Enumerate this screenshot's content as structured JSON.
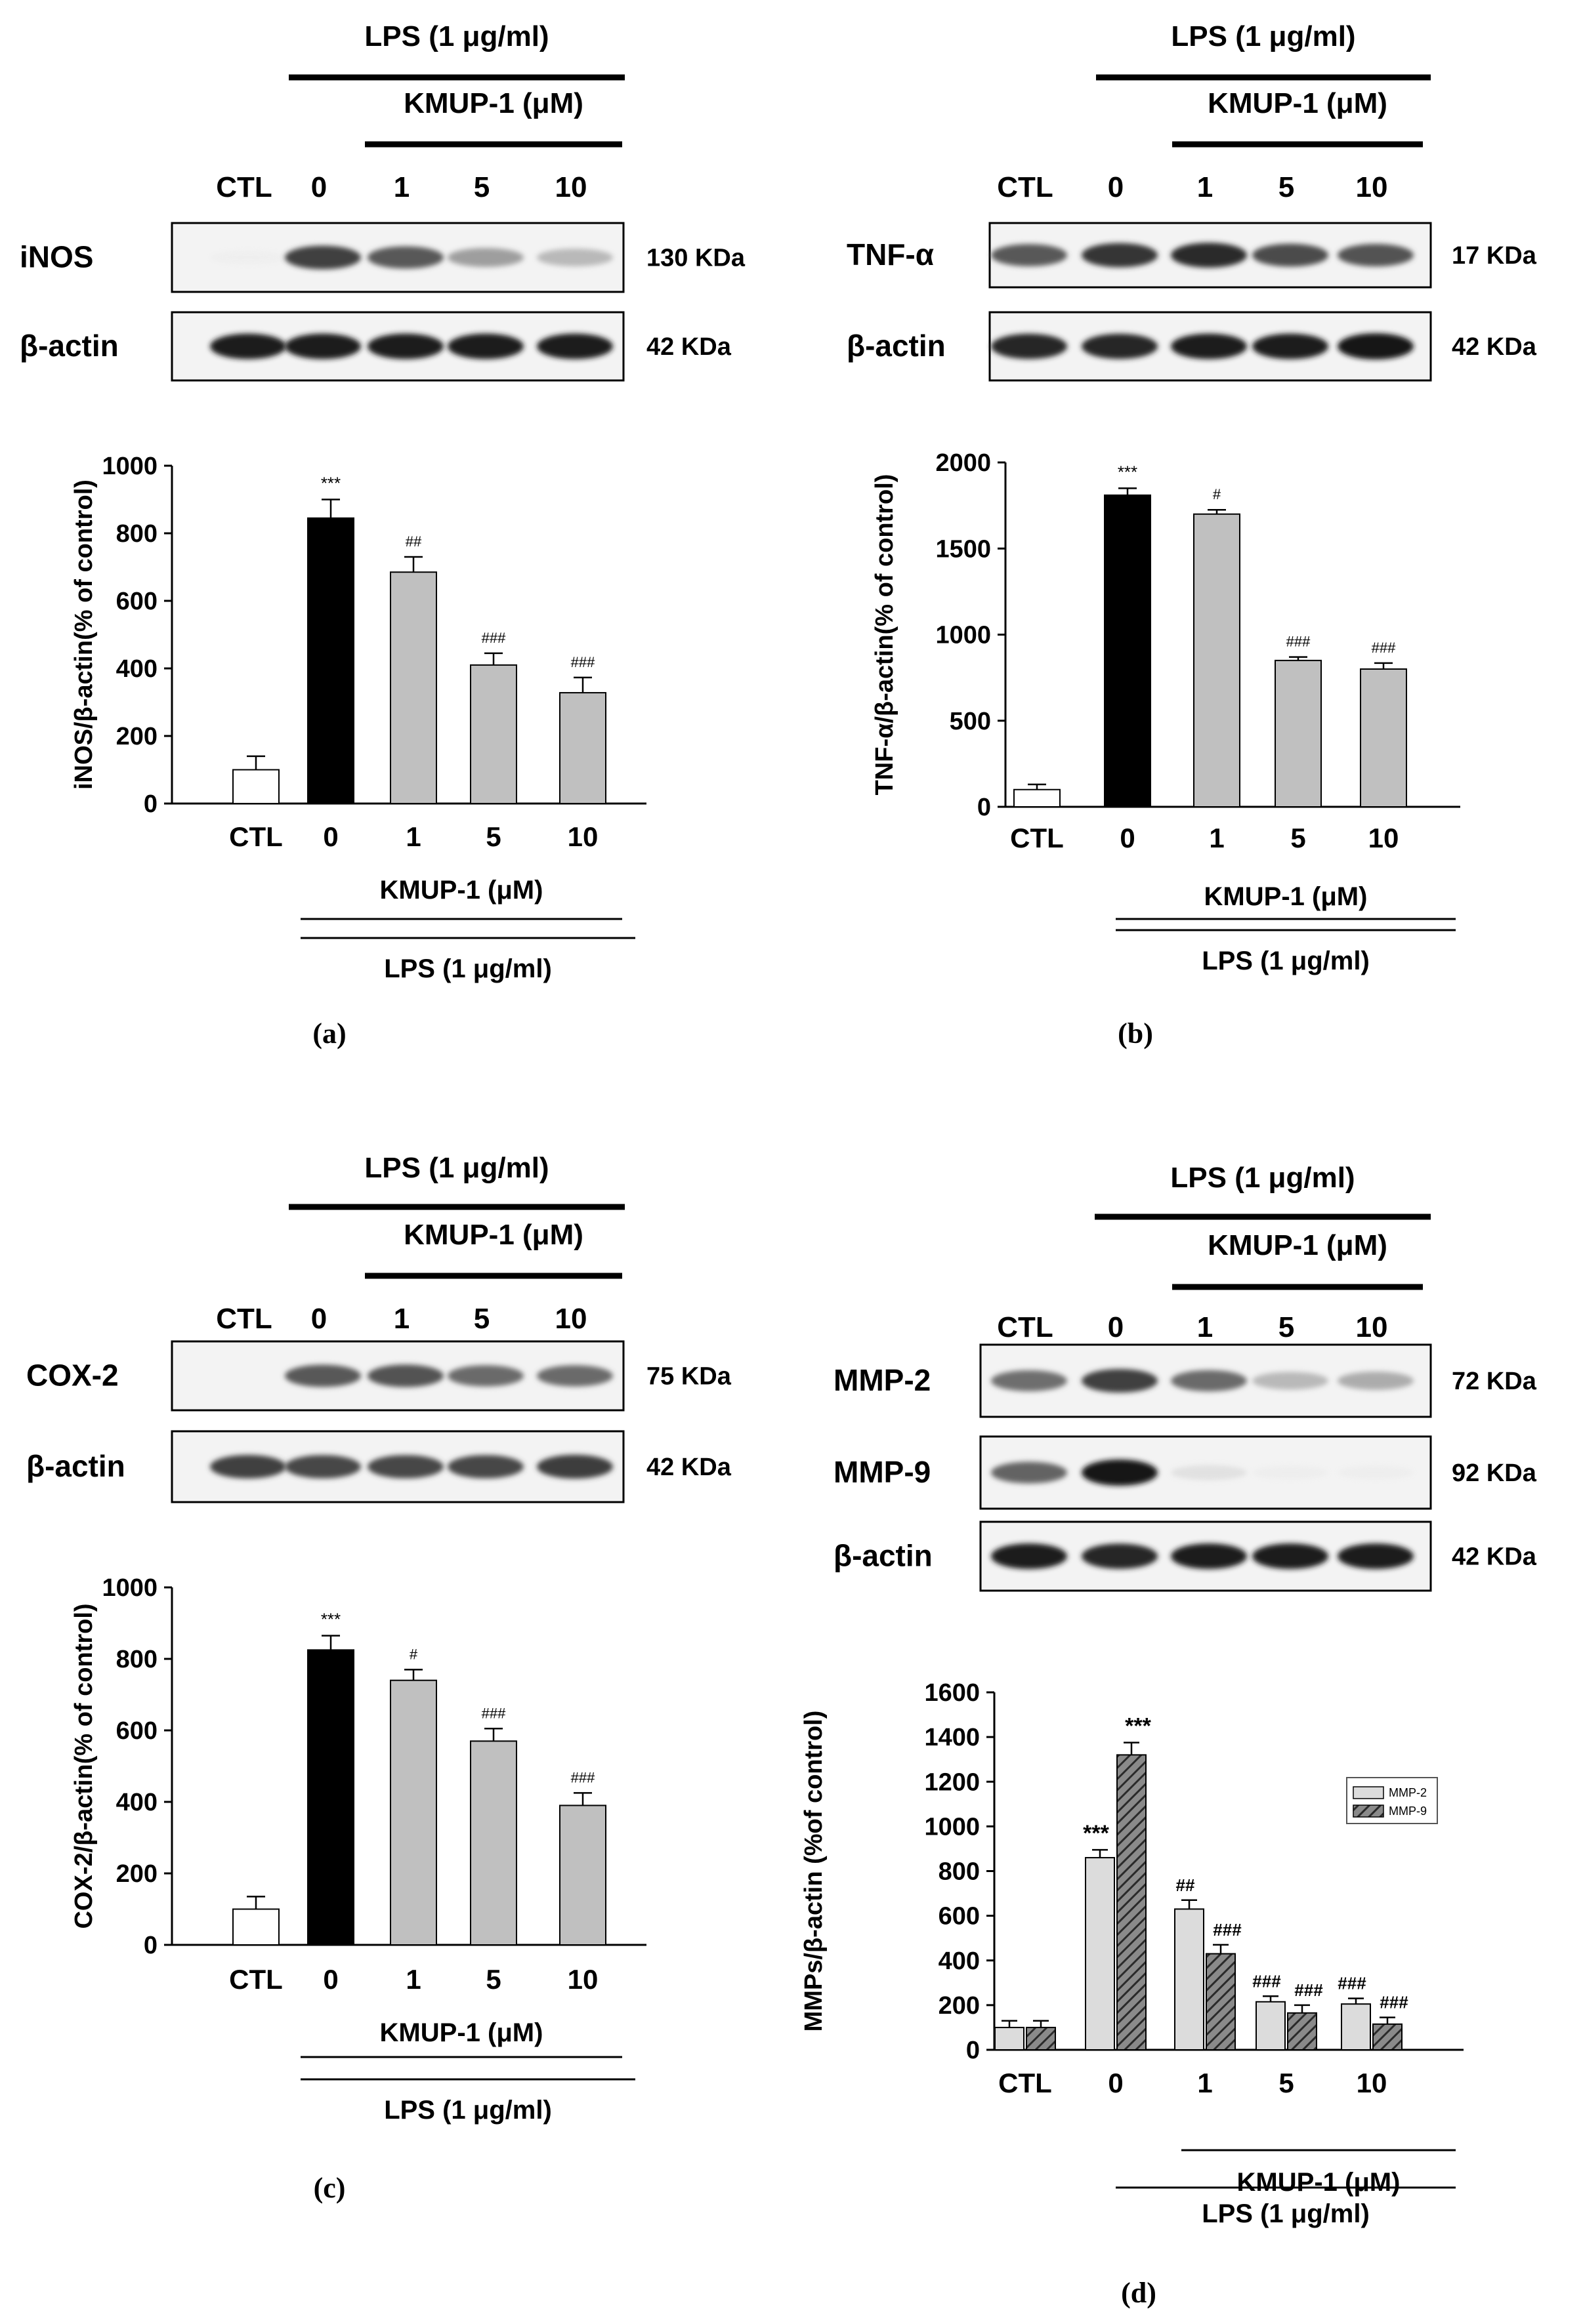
{
  "panels": [
    {
      "id": "a",
      "caption": "(a)",
      "blot": {
        "lps_label": "LPS (1 μg/ml)",
        "kmup_label": "KMUP-1 (μM)",
        "lanes": [
          "CTL",
          "0",
          "1",
          "5",
          "10"
        ],
        "rows": [
          {
            "name": "iNOS",
            "kda": "130 KDa",
            "intensity": [
              0.05,
              0.8,
              0.7,
              0.45,
              0.35
            ]
          },
          {
            "name": "β-actin",
            "kda": "42 KDa",
            "intensity": [
              0.95,
              0.95,
              0.95,
              0.95,
              0.95
            ]
          }
        ]
      },
      "chart_data": {
        "type": "bar",
        "ylabel": "iNOS/β-actin(% of control)",
        "ylim": [
          0,
          1000
        ],
        "yticks": [
          0,
          200,
          400,
          600,
          800,
          1000
        ],
        "categories": [
          "CTL",
          "0",
          "1",
          "5",
          "10"
        ],
        "values": [
          100,
          845,
          685,
          410,
          328
        ],
        "errors": [
          40,
          55,
          45,
          35,
          45
        ],
        "bar_colors": [
          "#ffffff",
          "#000000",
          "#c0c0c0",
          "#c0c0c0",
          "#c0c0c0"
        ],
        "significance": [
          "",
          "***",
          "##",
          "###",
          "###"
        ],
        "kmup_label": "KMUP-1 (μM)",
        "lps_label": "LPS (1 μg/ml)"
      }
    },
    {
      "id": "b",
      "caption": "(b)",
      "blot": {
        "lps_label": "LPS (1 μg/ml)",
        "kmup_label": "KMUP-1 (μM)",
        "lanes": [
          "CTL",
          "0",
          "1",
          "5",
          "10"
        ],
        "rows": [
          {
            "name": "TNF-α",
            "kda": "17 KDa",
            "intensity": [
              0.7,
              0.85,
              0.9,
              0.75,
              0.72
            ]
          },
          {
            "name": "β-actin",
            "kda": "42 KDa",
            "intensity": [
              0.92,
              0.92,
              0.95,
              0.95,
              1.0
            ]
          }
        ]
      },
      "chart_data": {
        "type": "bar",
        "ylabel": "TNF-α/β-actin(% of control)",
        "ylim": [
          0,
          2000
        ],
        "yticks": [
          0,
          500,
          1000,
          1500,
          2000
        ],
        "categories": [
          "CTL",
          "0",
          "1",
          "5",
          "10"
        ],
        "values": [
          100,
          1810,
          1700,
          850,
          800
        ],
        "errors": [
          30,
          40,
          25,
          20,
          35
        ],
        "bar_colors": [
          "#ffffff",
          "#000000",
          "#c0c0c0",
          "#c0c0c0",
          "#c0c0c0"
        ],
        "significance": [
          "",
          "***",
          "#",
          "###",
          "###"
        ],
        "kmup_label": "KMUP-1 (μM)",
        "lps_label": "LPS (1 μg/ml)"
      }
    },
    {
      "id": "c",
      "caption": "(c)",
      "blot": {
        "lps_label": "LPS (1 μg/ml)",
        "kmup_label": "KMUP-1 (μM)",
        "lanes": [
          "CTL",
          "0",
          "1",
          "5",
          "10"
        ],
        "rows": [
          {
            "name": "COX-2",
            "kda": "75 KDa",
            "intensity": [
              0.0,
              0.7,
              0.72,
              0.62,
              0.62
            ]
          },
          {
            "name": "β-actin",
            "kda": "42 KDa",
            "intensity": [
              0.8,
              0.78,
              0.78,
              0.78,
              0.82
            ]
          }
        ]
      },
      "chart_data": {
        "type": "bar",
        "ylabel": "COX-2/β-actin(% of control)",
        "ylim": [
          0,
          1000
        ],
        "yticks": [
          0,
          200,
          400,
          600,
          800,
          1000
        ],
        "categories": [
          "CTL",
          "0",
          "1",
          "5",
          "10"
        ],
        "values": [
          100,
          825,
          740,
          570,
          390
        ],
        "errors": [
          35,
          40,
          30,
          35,
          35
        ],
        "bar_colors": [
          "#ffffff",
          "#000000",
          "#c0c0c0",
          "#c0c0c0",
          "#c0c0c0"
        ],
        "significance": [
          "",
          "***",
          "#",
          "###",
          "###"
        ],
        "kmup_label": "KMUP-1 (μM)",
        "lps_label": "LPS (1 μg/ml)"
      }
    },
    {
      "id": "d",
      "caption": "(d)",
      "blot": {
        "lps_label": "LPS (1 μg/ml)",
        "kmup_label": "KMUP-1 (μM)",
        "lanes": [
          "CTL",
          "0",
          "1",
          "5",
          "10"
        ],
        "rows": [
          {
            "name": "MMP-2",
            "kda": "72 KDa",
            "intensity": [
              0.6,
              0.8,
              0.62,
              0.35,
              0.4
            ]
          },
          {
            "name": "MMP-9",
            "kda": "92 KDa",
            "intensity": [
              0.65,
              1.0,
              0.15,
              0.06,
              0.06
            ]
          },
          {
            "name": "β-actin",
            "kda": "42 KDa",
            "intensity": [
              0.95,
              0.92,
              0.95,
              0.95,
              0.95
            ]
          }
        ]
      },
      "chart_data": {
        "type": "bar",
        "ylabel": "MMPs/β-actin (%of control)",
        "ylim": [
          0,
          1600
        ],
        "yticks": [
          0,
          200,
          400,
          600,
          800,
          1000,
          1200,
          1400,
          1600
        ],
        "categories": [
          "CTL",
          "0",
          "1",
          "5",
          "10"
        ],
        "series": [
          {
            "name": "MMP-2",
            "values": [
              100,
              860,
              630,
              215,
              205
            ],
            "errors": [
              30,
              35,
              40,
              25,
              25
            ],
            "significance": [
              "",
              "***",
              "##",
              "###",
              "###"
            ],
            "color": "#dcdcdc",
            "pattern": "solid"
          },
          {
            "name": "MMP-9",
            "values": [
              100,
              1320,
              430,
              165,
              115
            ],
            "errors": [
              30,
              55,
              40,
              35,
              30
            ],
            "significance": [
              "",
              "***",
              "###",
              "###",
              "###"
            ],
            "color": "#555555",
            "pattern": "hatch"
          }
        ],
        "legend_position": "top-right",
        "kmup_label": "KMUP-1 (μM)",
        "lps_label": "LPS (1 μg/ml)"
      }
    }
  ]
}
